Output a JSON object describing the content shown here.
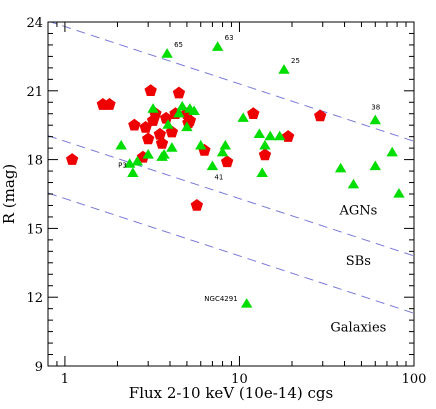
{
  "chart_data": {
    "type": "scatter",
    "title": "",
    "xlabel": "Flux 2-10 keV (10e-14) cgs",
    "ylabel": "R (mag)",
    "xscale": "log",
    "xlim": [
      0.8,
      100
    ],
    "ylim": [
      9,
      24
    ],
    "x_ticks": [
      1,
      10,
      100
    ],
    "x_tick_labels": [
      "1",
      "10",
      "100"
    ],
    "y_ticks": [
      9,
      12,
      15,
      18,
      21,
      24
    ],
    "y_tick_labels": [
      "9",
      "12",
      "15",
      "18",
      "21",
      "24"
    ],
    "grid": false,
    "legend": "none",
    "reference_lines": [
      {
        "name": "AGN upper",
        "style": "dashed",
        "color": "#7a7ad8",
        "y_at_x1": 23.8,
        "slope_per_dex": -2.5
      },
      {
        "name": "AGN lower",
        "style": "dashed",
        "color": "#7a7ad8",
        "y_at_x1": 18.8,
        "slope_per_dex": -2.5
      },
      {
        "name": "SB lower",
        "style": "dashed",
        "color": "#7a7ad8",
        "y_at_x1": 16.3,
        "slope_per_dex": -2.5
      }
    ],
    "region_labels": [
      {
        "text": "AGNs",
        "x": 48,
        "y": 15.6
      },
      {
        "text": "SBs",
        "x": 48,
        "y": 13.4
      },
      {
        "text": "Galaxies",
        "x": 48,
        "y": 10.5
      }
    ],
    "series": [
      {
        "marker": "pentagon",
        "color": "#ee0000",
        "x": [
          1.1,
          1.65,
          1.8,
          2.5,
          2.8,
          2.9,
          3.0,
          3.1,
          3.2,
          3.3,
          3.5,
          3.6,
          3.8,
          4.1,
          4.3,
          4.5,
          5.0,
          5.1,
          5.2,
          5.7,
          6.3,
          8.5,
          12.0,
          14.0,
          19.0,
          29.0
        ],
        "y": [
          18.0,
          20.4,
          20.4,
          19.5,
          18.1,
          19.4,
          18.9,
          21.0,
          19.7,
          20.0,
          19.1,
          18.7,
          19.8,
          19.2,
          20.0,
          20.9,
          20.0,
          19.6,
          19.7,
          16.0,
          18.4,
          17.9,
          20.0,
          18.2,
          19.0,
          19.9
        ]
      },
      {
        "marker": "triangle",
        "color": "#00dd00",
        "x": [
          2.1,
          2.35,
          2.45,
          2.6,
          3.0,
          3.2,
          3.6,
          3.7,
          3.85,
          3.9,
          4.1,
          4.5,
          4.7,
          5.0,
          5.2,
          5.5,
          6.0,
          7.0,
          7.5,
          8.0,
          8.3,
          10.5,
          11.0,
          13.0,
          13.5,
          14.0,
          15.0,
          17.0,
          18.0,
          38.0,
          45.0,
          60.0,
          60.0,
          75.0,
          82.0
        ],
        "y": [
          18.6,
          17.8,
          17.4,
          17.9,
          18.2,
          20.2,
          18.1,
          18.2,
          22.6,
          19.5,
          18.5,
          20.0,
          20.3,
          19.4,
          20.2,
          20.1,
          18.6,
          17.7,
          22.9,
          18.3,
          18.6,
          19.8,
          11.7,
          19.1,
          17.4,
          18.6,
          19.0,
          19.0,
          21.9,
          17.6,
          16.9,
          17.7,
          19.7,
          18.3,
          16.5
        ]
      }
    ],
    "point_labels": [
      {
        "text": "65",
        "x": 3.85,
        "y": 22.6
      },
      {
        "text": "63",
        "x": 7.5,
        "y": 22.9
      },
      {
        "text": "25",
        "x": 18.0,
        "y": 21.9
      },
      {
        "text": "38",
        "x": 60.0,
        "y": 19.7
      },
      {
        "text": "41",
        "x": 7.0,
        "y": 17.7
      },
      {
        "text": "P3",
        "x": 2.45,
        "y": 17.4
      },
      {
        "text": "NGC4291",
        "x": 11.0,
        "y": 11.7
      }
    ]
  }
}
